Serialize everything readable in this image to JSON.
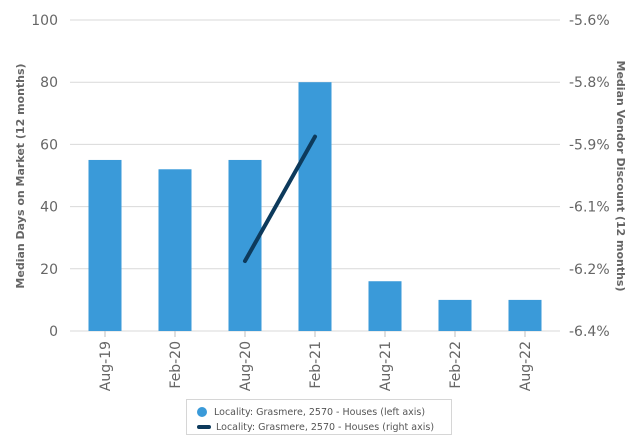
{
  "chart_data": {
    "type": "bar",
    "categories": [
      "Aug-19",
      "Feb-20",
      "Aug-20",
      "Feb-21",
      "Aug-21",
      "Feb-22",
      "Aug-22"
    ],
    "series": [
      {
        "name": "Locality: Grasmere, 2570 - Houses (left axis)",
        "type": "bar",
        "axis": "left",
        "color": "#3a9ad9",
        "values": [
          55,
          52,
          55,
          80,
          16,
          10,
          10
        ]
      },
      {
        "name": "Locality: Grasmere, 2570 - Houses (right axis)",
        "type": "line",
        "axis": "right",
        "color": "#0d3a5c",
        "points": [
          {
            "x": 2.5,
            "y": -6.22
          },
          {
            "x": 3.5,
            "y": -5.9
          }
        ]
      }
    ],
    "ylabel": "Median Days on Market (12 months)",
    "y2label": "Median Vendor Discount (12 months)",
    "ylim": [
      0,
      100
    ],
    "yticks": [
      "0",
      "20",
      "40",
      "60",
      "80",
      "100"
    ],
    "y2lim": [
      -6.4,
      -5.6
    ],
    "y2ticks": [
      "-6.4%",
      "-6.2%",
      "-6.1%",
      "-5.9%",
      "-5.8%",
      "-5.6%"
    ],
    "grid": true,
    "legend_position": "bottom"
  }
}
